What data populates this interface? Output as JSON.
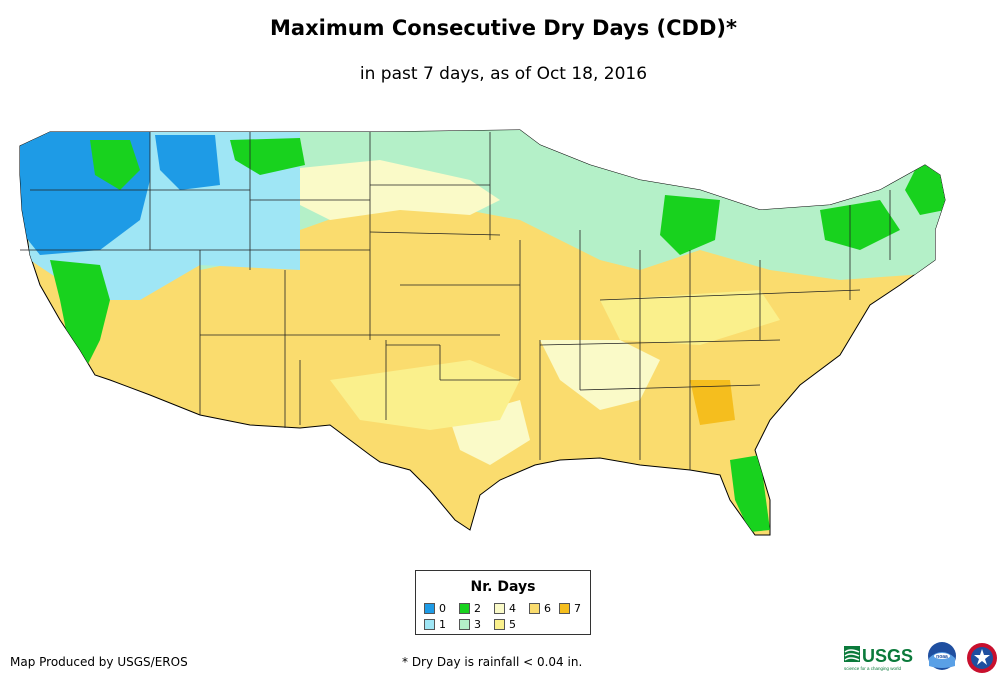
{
  "title": "Maximum Consecutive Dry Days (CDD)*",
  "subtitle": "in past 7 days, as of Oct 18, 2016",
  "legend": {
    "title": "Nr. Days",
    "items": [
      {
        "label": "0",
        "color": "#1e9be6"
      },
      {
        "label": "1",
        "color": "#9fe6f5"
      },
      {
        "label": "2",
        "color": "#18d21e"
      },
      {
        "label": "3",
        "color": "#b4f0c8"
      },
      {
        "label": "4",
        "color": "#fafac8"
      },
      {
        "label": "5",
        "color": "#faf08c"
      },
      {
        "label": "6",
        "color": "#fadc6e"
      },
      {
        "label": "7",
        "color": "#f5be1e"
      }
    ]
  },
  "credits": {
    "produced_by": "Map Produced by USGS/EROS",
    "footnote": "* Dry Day is rainfall < 0.04 in.",
    "usgs_logo_text": "USGS",
    "usgs_tagline": "science for a changing world",
    "noaa_logo_text": "noaa"
  }
}
